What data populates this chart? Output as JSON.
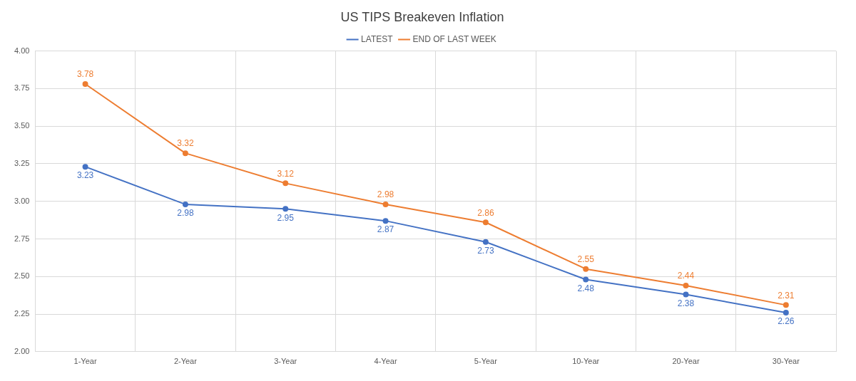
{
  "chart_data": {
    "type": "line",
    "title": "US TIPS Breakeven Inflation",
    "categories": [
      "1-Year",
      "2-Year",
      "3-Year",
      "4-Year",
      "5-Year",
      "10-Year",
      "20-Year",
      "30-Year"
    ],
    "series": [
      {
        "name": "LATEST",
        "color": "#4472c4",
        "values": [
          3.23,
          2.98,
          2.95,
          2.87,
          2.73,
          2.48,
          2.38,
          2.26
        ]
      },
      {
        "name": "END OF LAST WEEK",
        "color": "#ed7d31",
        "values": [
          3.78,
          3.32,
          3.12,
          2.98,
          2.86,
          2.55,
          2.44,
          2.31
        ]
      }
    ],
    "ylim": [
      2,
      4
    ],
    "yticks": [
      {
        "value": 2,
        "label": "2.00"
      },
      {
        "value": 2.25,
        "label": "2.25"
      },
      {
        "value": 2.5,
        "label": "2.50"
      },
      {
        "value": 2.75,
        "label": "2.75"
      },
      {
        "value": 3,
        "label": "3.00"
      },
      {
        "value": 3.25,
        "label": "3.25"
      },
      {
        "value": 3.5,
        "label": "3.50"
      },
      {
        "value": 3.75,
        "label": "3.75"
      },
      {
        "value": 4,
        "label": "4.00"
      }
    ],
    "grid": true,
    "legend": "top",
    "marker": "circle",
    "line_style": "solid",
    "data_labels": true
  }
}
